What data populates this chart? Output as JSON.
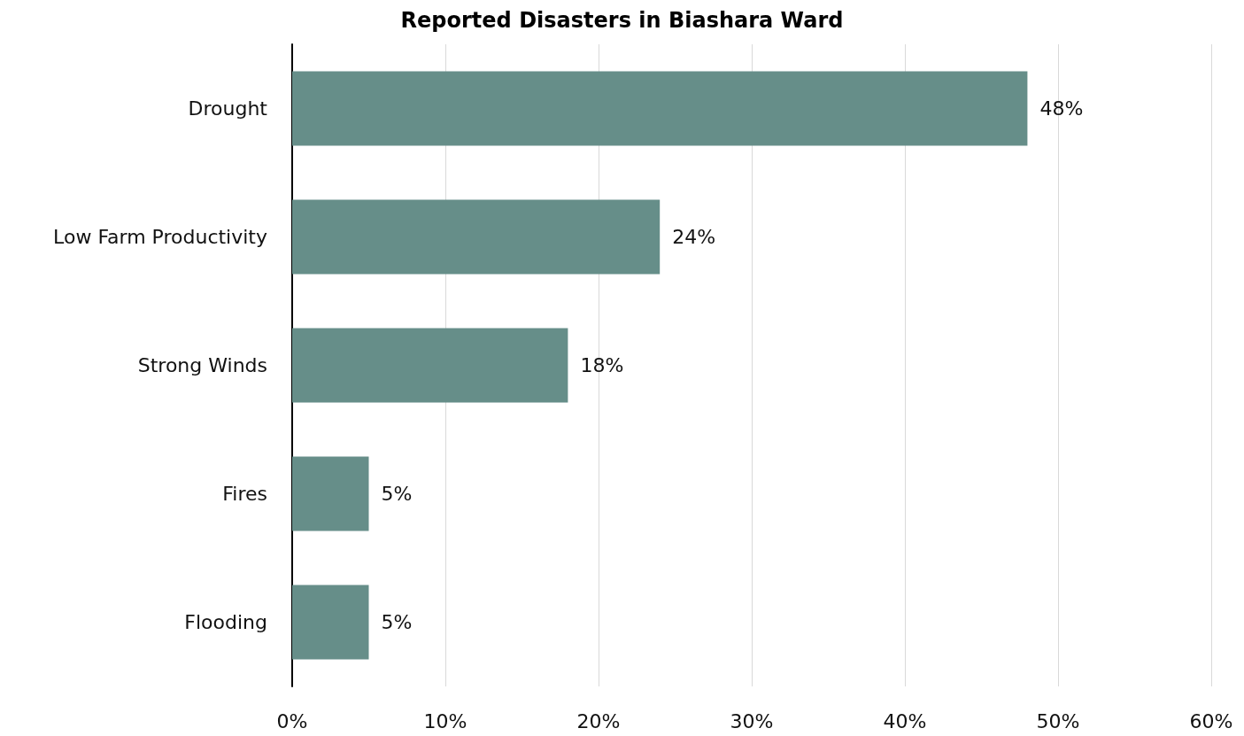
{
  "chart_data": {
    "type": "bar",
    "orientation": "horizontal",
    "title": "Reported Disasters in Biashara Ward",
    "categories": [
      "Drought",
      "Low Farm Productivity",
      "Strong Winds",
      "Fires",
      "Flooding"
    ],
    "values": [
      48,
      24,
      18,
      5,
      5
    ],
    "color": "#668e89",
    "value_labels": [
      "48%",
      "24%",
      "18%",
      "5%",
      "5%"
    ],
    "xlim": [
      0,
      60
    ],
    "xticks": [
      {
        "value": 0,
        "label": "0%"
      },
      {
        "value": 10,
        "label": "10%"
      },
      {
        "value": 20,
        "label": "20%"
      },
      {
        "value": 30,
        "label": "30%"
      },
      {
        "value": 40,
        "label": "40%"
      },
      {
        "value": 50,
        "label": "50%"
      },
      {
        "value": 60,
        "label": "60%"
      }
    ],
    "grid": "x"
  }
}
